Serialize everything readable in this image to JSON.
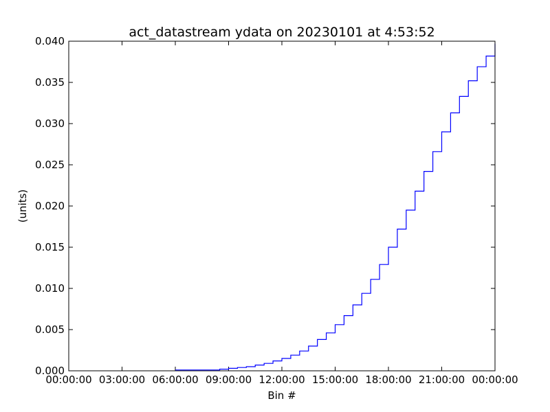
{
  "chart_data": {
    "type": "line",
    "step": true,
    "title": "act_datastream ydata on 20230101 at 4:53:52",
    "xlabel": "Bin #",
    "ylabel": "(units)",
    "xlim": [
      "00:00:00",
      "00:00:00 (next day)"
    ],
    "ylim": [
      0.0,
      0.04
    ],
    "x_tick_labels": [
      "00:00:00",
      "03:00:00",
      "06:00:00",
      "09:00:00",
      "12:00:00",
      "15:00:00",
      "18:00:00",
      "21:00:00",
      "00:00:00"
    ],
    "y_tick_labels": [
      "0.000",
      "0.005",
      "0.010",
      "0.015",
      "0.020",
      "0.025",
      "0.030",
      "0.035",
      "0.040"
    ],
    "grid": false,
    "legend": "none",
    "series": [
      {
        "color": "#0000ff",
        "x": [
          "06:00",
          "06:30",
          "07:00",
          "07:30",
          "08:00",
          "08:30",
          "09:00",
          "09:30",
          "10:00",
          "10:30",
          "11:00",
          "11:30",
          "12:00",
          "12:30",
          "13:00",
          "13:30",
          "14:00",
          "14:30",
          "15:00",
          "15:30",
          "16:00",
          "16:30",
          "17:00",
          "17:30",
          "18:00",
          "18:30",
          "19:00",
          "19:30",
          "20:00",
          "20:30",
          "21:00",
          "21:30",
          "22:00",
          "22:30",
          "23:00",
          "23:30"
        ],
        "values": [
          0.0001,
          0.0001,
          0.0001,
          0.0001,
          0.0001,
          0.0002,
          0.0003,
          0.0004,
          0.0005,
          0.0007,
          0.0009,
          0.0012,
          0.0015,
          0.0019,
          0.0024,
          0.003,
          0.0038,
          0.0046,
          0.0056,
          0.0067,
          0.008,
          0.0094,
          0.0111,
          0.0129,
          0.015,
          0.0172,
          0.0195,
          0.0218,
          0.0242,
          0.0266,
          0.029,
          0.0313,
          0.0333,
          0.0352,
          0.0369,
          0.0382
        ],
        "final_value": 0.0397
      }
    ]
  }
}
